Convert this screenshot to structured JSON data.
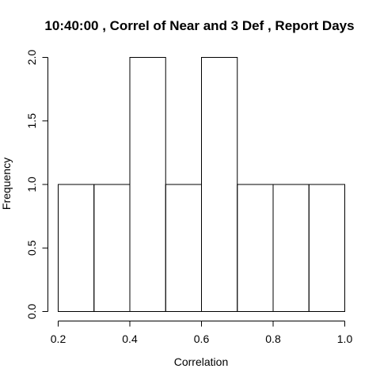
{
  "chart_data": {
    "type": "bar",
    "title": "10:40:00 , Correl of Near and 3 Def , Report Days",
    "xlabel": "Correlation",
    "ylabel": "Frequency",
    "bins": [
      {
        "start": 0.2,
        "end": 0.3,
        "count": 1
      },
      {
        "start": 0.3,
        "end": 0.4,
        "count": 1
      },
      {
        "start": 0.4,
        "end": 0.5,
        "count": 2
      },
      {
        "start": 0.5,
        "end": 0.6,
        "count": 1
      },
      {
        "start": 0.6,
        "end": 0.7,
        "count": 2
      },
      {
        "start": 0.7,
        "end": 0.8,
        "count": 1
      },
      {
        "start": 0.8,
        "end": 0.9,
        "count": 1
      },
      {
        "start": 0.9,
        "end": 1.0,
        "count": 1
      }
    ],
    "xlim": [
      0.2,
      1.0
    ],
    "ylim": [
      0,
      2
    ],
    "x_ticks": [
      "0.2",
      "0.4",
      "0.6",
      "0.8",
      "1.0"
    ],
    "y_ticks": [
      "0.0",
      "0.5",
      "1.0",
      "1.5",
      "2.0"
    ],
    "grid": false,
    "colors": {
      "bar_fill": "#ffffff",
      "bar_stroke": "#000000"
    }
  }
}
